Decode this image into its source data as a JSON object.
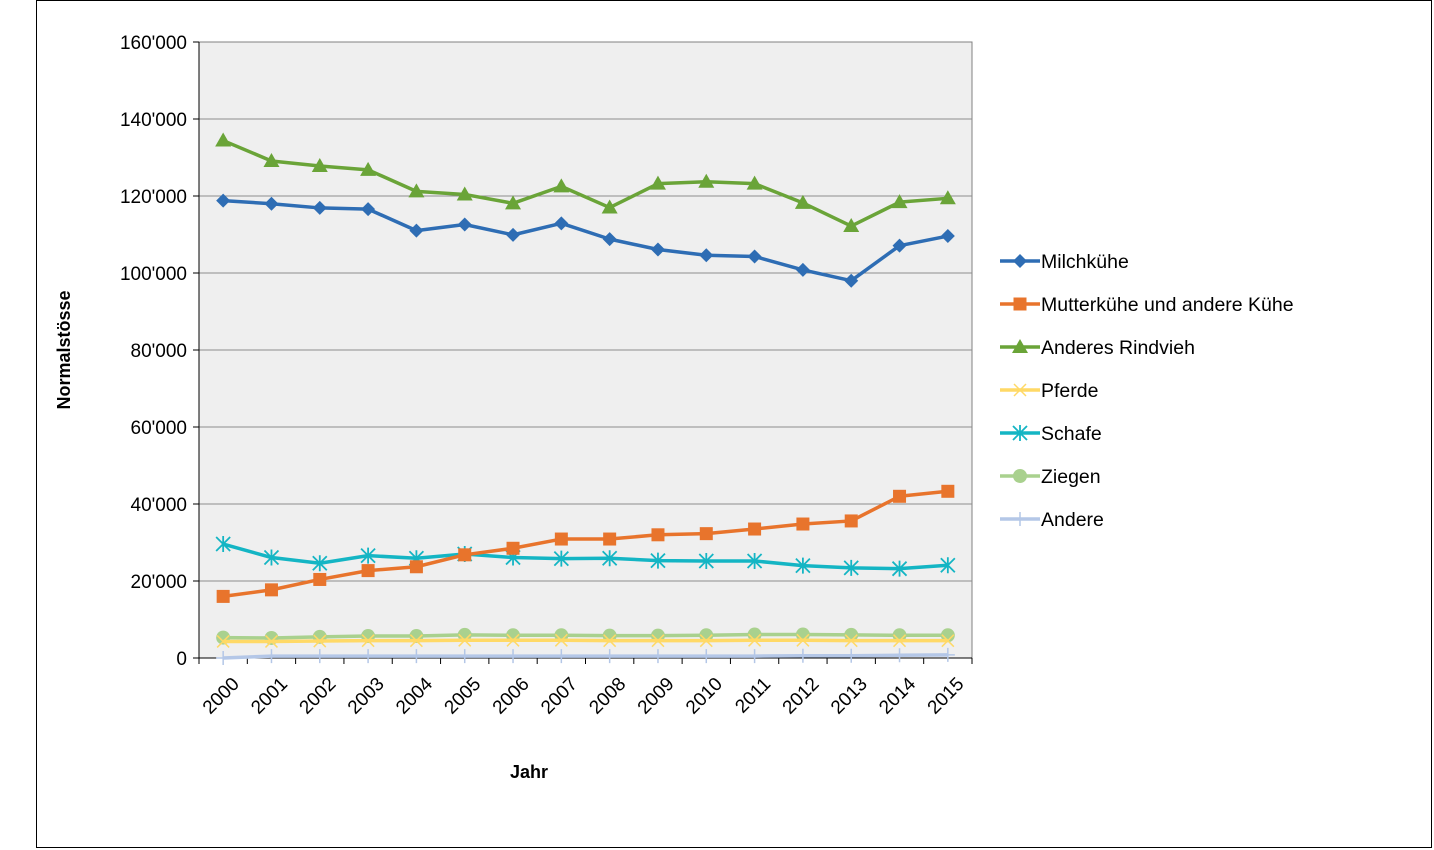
{
  "chart_data": {
    "type": "line",
    "title": "",
    "xlabel": "Jahr",
    "ylabel": "Normalstösse",
    "x": [
      "2000",
      "2001",
      "2002",
      "2003",
      "2004",
      "2005",
      "2006",
      "2007",
      "2008",
      "2009",
      "2010",
      "2011",
      "2012",
      "2013",
      "2014",
      "2015"
    ],
    "y_ticks": [
      "0",
      "20'000",
      "40'000",
      "60'000",
      "80'000",
      "100'000",
      "120'000",
      "140'000",
      "160'000"
    ],
    "ylim": [
      0,
      160000
    ],
    "grid": true,
    "legend_position": "right",
    "plot_background": "#efefef",
    "series": [
      {
        "name": "Milchkühe",
        "color": "#2e6db4",
        "marker": "diamond",
        "values": [
          118800,
          118000,
          116900,
          116600,
          111000,
          112600,
          109900,
          112900,
          108800,
          106100,
          104600,
          104300,
          100800,
          98000,
          107100,
          109600
        ]
      },
      {
        "name": "Mutterkühe und andere Kühe",
        "color": "#e8742c",
        "marker": "square",
        "values": [
          16000,
          17700,
          20400,
          22700,
          23700,
          26800,
          28500,
          30900,
          30900,
          32000,
          32300,
          33500,
          34800,
          35600,
          42000,
          43300
        ]
      },
      {
        "name": "Anderes Rindvieh",
        "color": "#6aa438",
        "marker": "triangle",
        "values": [
          134400,
          129100,
          127800,
          126800,
          121200,
          120400,
          118100,
          122500,
          117000,
          123200,
          123700,
          123200,
          118200,
          112200,
          118400,
          119400
        ]
      },
      {
        "name": "Pferde",
        "color": "#ffd966",
        "marker": "x",
        "values": [
          4300,
          4300,
          4400,
          4500,
          4500,
          4600,
          4600,
          4600,
          4500,
          4500,
          4500,
          4600,
          4600,
          4500,
          4500,
          4500
        ]
      },
      {
        "name": "Schafe",
        "color": "#14b5c4",
        "marker": "star",
        "values": [
          29600,
          26100,
          24600,
          26600,
          25900,
          27000,
          26100,
          25800,
          25900,
          25300,
          25200,
          25200,
          24000,
          23400,
          23200,
          24100
        ]
      },
      {
        "name": "Ziegen",
        "color": "#a9d18e",
        "marker": "circle",
        "values": [
          5300,
          5200,
          5500,
          5700,
          5700,
          6000,
          5900,
          5900,
          5800,
          5800,
          5900,
          6100,
          6100,
          6000,
          5900,
          5900
        ]
      },
      {
        "name": "Andere",
        "color": "#b4c7e7",
        "marker": "plus",
        "values": [
          0,
          500,
          500,
          500,
          500,
          500,
          500,
          500,
          500,
          500,
          500,
          500,
          600,
          600,
          700,
          800
        ]
      }
    ]
  }
}
